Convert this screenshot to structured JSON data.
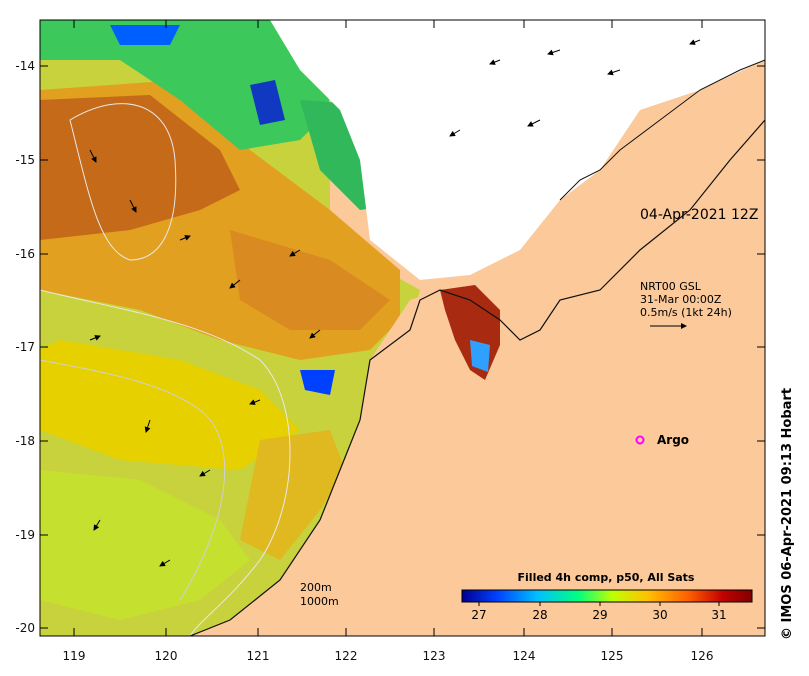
{
  "map": {
    "axis_x_labels": [
      "119",
      "120",
      "121",
      "122",
      "123",
      "124",
      "125",
      "126"
    ],
    "axis_y_labels": [
      "-14",
      "-15",
      "-16",
      "-17",
      "-18",
      "-19",
      "-20"
    ],
    "lon_range": [
      118.65,
      126.75
    ],
    "lat_range": [
      -20.1,
      -13.5
    ],
    "timestamp_label": "04-Apr-2021 12Z",
    "current_legend": {
      "line1": "NRT00 GSL",
      "line2": "31-Mar 00:00Z",
      "line3": "0.5m/s (1kt 24h)"
    },
    "argo_label": "Argo",
    "depth_labels": [
      "200m",
      "1000m"
    ],
    "colorbar": {
      "title": "Filled 4h comp, p50, All Sats",
      "tick_labels": [
        "27",
        "28",
        "29",
        "30",
        "31"
      ],
      "colors": [
        "#00008f",
        "#0040ff",
        "#00c0ff",
        "#00ff80",
        "#c0ff00",
        "#ffc000",
        "#ff6000",
        "#c00000",
        "#800000"
      ]
    },
    "credit": "© IMOS 06-Apr-2021 09:13 Hobart",
    "colors": {
      "land": "#fbc99a",
      "cloud": "#ffffff",
      "argo_marker": "#ff00ff",
      "contour": "#dcdcdc"
    }
  }
}
